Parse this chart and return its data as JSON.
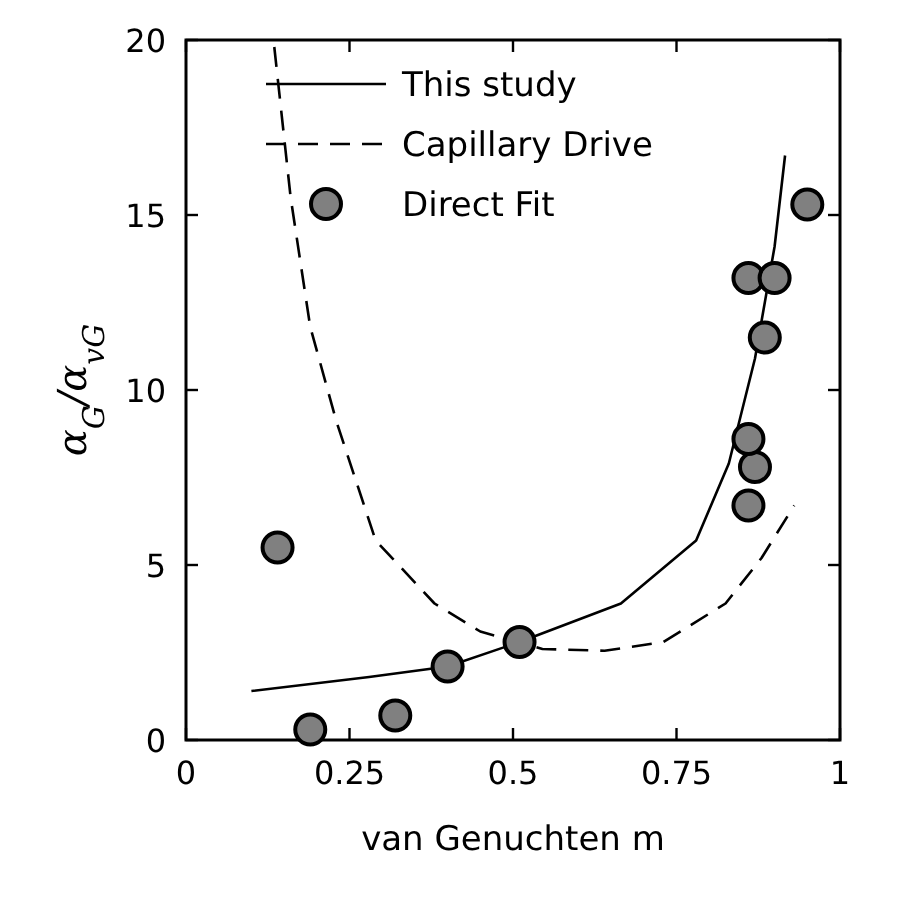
{
  "chart_data": {
    "type": "scatter",
    "xlabel": "van Genuchten m",
    "ylabel": "α$_{G}$/α$_{vG}$",
    "xlim": [
      0,
      1
    ],
    "ylim": [
      0,
      20
    ],
    "xticks": [
      0,
      0.25,
      0.5,
      0.75,
      1
    ],
    "yticks": [
      0,
      5,
      10,
      15,
      20
    ],
    "legend": "top",
    "grid": false,
    "series": [
      {
        "name": "This study",
        "type": "line",
        "color": "#000000",
        "line_style": "solid",
        "x": [
          0.1,
          0.28,
          0.4,
          0.51,
          0.665,
          0.78,
          0.83,
          0.87,
          0.9,
          0.916
        ],
        "values": [
          1.4,
          1.8,
          2.1,
          2.8,
          3.9,
          5.7,
          7.9,
          10.9,
          14.1,
          16.7
        ]
      },
      {
        "name": "Capillary Drive",
        "type": "line",
        "color": "#000000",
        "line_style": "dashed",
        "x": [
          0.135,
          0.16,
          0.19,
          0.23,
          0.29,
          0.38,
          0.45,
          0.545,
          0.64,
          0.73,
          0.825,
          0.88,
          0.93
        ],
        "values": [
          19.8,
          15.5,
          11.8,
          9.1,
          5.7,
          3.9,
          3.1,
          2.6,
          2.55,
          2.8,
          3.9,
          5.2,
          6.7
        ]
      },
      {
        "name": "Direct Fit",
        "color": "#808080",
        "marker": "circle",
        "x": [
          0.14,
          0.19,
          0.32,
          0.4,
          0.51,
          0.86,
          0.87,
          0.86,
          0.885,
          0.86,
          0.9,
          0.95
        ],
        "values": [
          5.5,
          0.3,
          0.7,
          2.1,
          2.8,
          6.7,
          7.8,
          8.6,
          11.5,
          13.2,
          13.2,
          15.3
        ]
      }
    ]
  }
}
